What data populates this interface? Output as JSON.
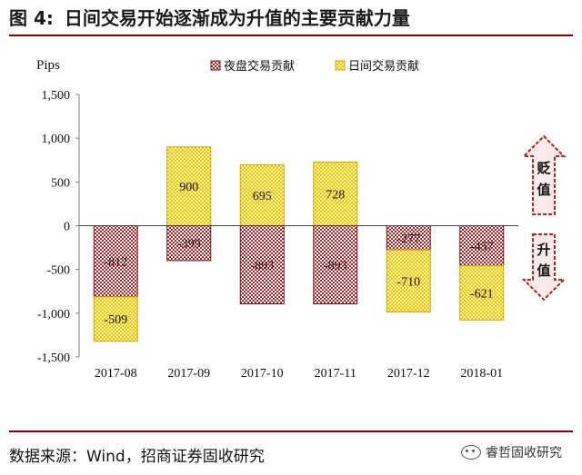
{
  "figure": {
    "number": "图 4:",
    "title": "日间交易开始逐渐成为升值的主要贡献力量",
    "source": "数据来源：Wind，招商证券固收研究",
    "watermark": "睿哲固收研究"
  },
  "annotations": {
    "depreciation": [
      "贬",
      "值"
    ],
    "appreciation": [
      "升",
      "值"
    ]
  },
  "chart_data": {
    "type": "bar",
    "stacked": true,
    "ylabel": "Pips",
    "ylim": [
      -1500,
      1500
    ],
    "yticks": [
      1500,
      1000,
      500,
      0,
      -500,
      -1000,
      -1500
    ],
    "ytick_labels": [
      "1,500",
      "1,000",
      "500",
      "0",
      "-500",
      "-1,000",
      "-1,500"
    ],
    "categories": [
      "2017-08",
      "2017-09",
      "2017-10",
      "2017-11",
      "2017-12",
      "2018-01"
    ],
    "legend_position": "top-center",
    "series": [
      {
        "name": "夜盘交易贡献",
        "values": [
          -812,
          -399,
          -893,
          -893,
          -277,
          -457
        ],
        "labels": [
          "-812",
          "-399",
          "-893",
          "-893",
          "-277",
          "-457"
        ],
        "color": "#b22222"
      },
      {
        "name": "日间交易贡献",
        "values": [
          -509,
          900,
          695,
          728,
          -710,
          -621
        ],
        "labels": [
          "-509",
          "900",
          "695",
          "728",
          "-710",
          "-621"
        ],
        "color": "#f2c200"
      }
    ]
  }
}
